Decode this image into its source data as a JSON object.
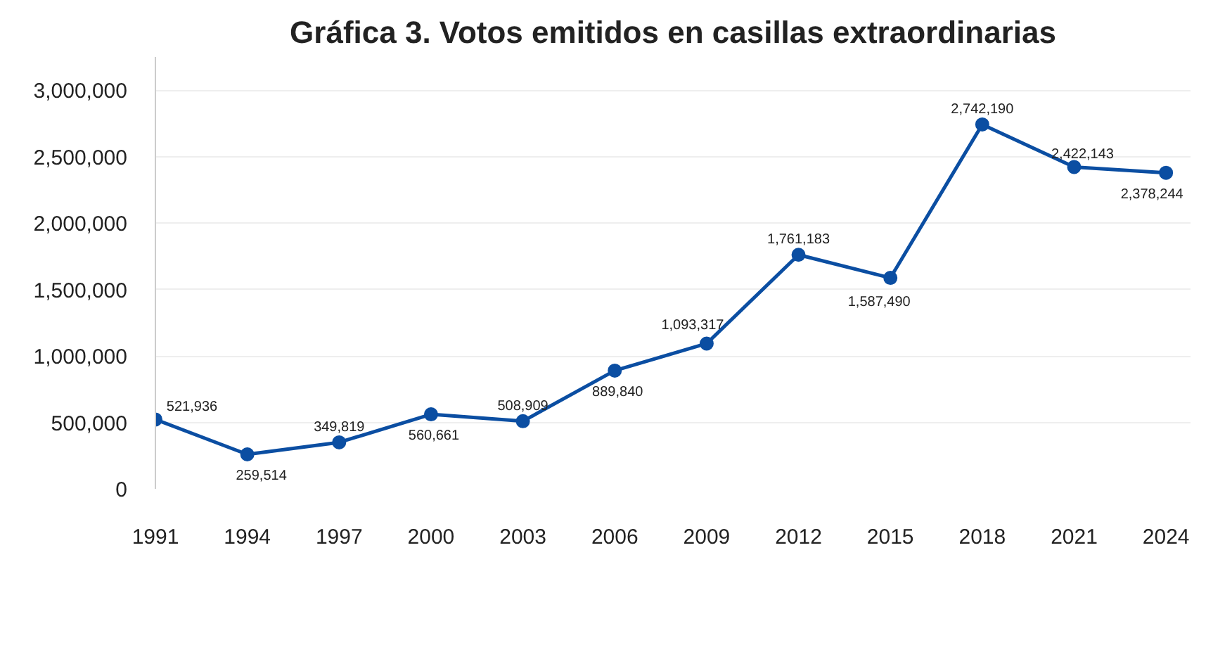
{
  "chart_data": {
    "type": "line",
    "title": "Gráfica 3. Votos emitidos en casillas extraordinarias",
    "x": [
      1991,
      1994,
      1997,
      2000,
      2003,
      2006,
      2009,
      2012,
      2015,
      2018,
      2021,
      2024
    ],
    "series": [
      {
        "color": "#0b4ea2",
        "values": [
          521936,
          259514,
          349819,
          560661,
          508909,
          889840,
          1093317,
          1761183,
          1587490,
          2742190,
          2422143,
          2378244
        ]
      }
    ],
    "xlim": [
      1991,
      2024.8
    ],
    "xticks": [
      1991,
      1994,
      1997,
      2000,
      2003,
      2006,
      2009,
      2012,
      2015,
      2018,
      2021,
      2024
    ],
    "ylim": [
      0,
      3250000
    ],
    "yticks": [
      {
        "value": 0,
        "label": "0"
      },
      {
        "value": 500000,
        "label": "500,000"
      },
      {
        "value": 1000000,
        "label": "1,000,000"
      },
      {
        "value": 1500000,
        "label": "1,500,000"
      },
      {
        "value": 2000000,
        "label": "2,000,000"
      },
      {
        "value": 2500000,
        "label": "2,500,000"
      },
      {
        "value": 3000000,
        "label": "3,000,000"
      }
    ],
    "grid": "y",
    "marker": "circle",
    "line_style": "solid",
    "value_labels": [
      "521,936",
      "259,514",
      "349,819",
      "560,661",
      "508,909",
      "889,840",
      "1,093,317",
      "1,761,183",
      "1,587,490",
      "2,742,190",
      "2,422,143",
      "2,378,244"
    ]
  }
}
